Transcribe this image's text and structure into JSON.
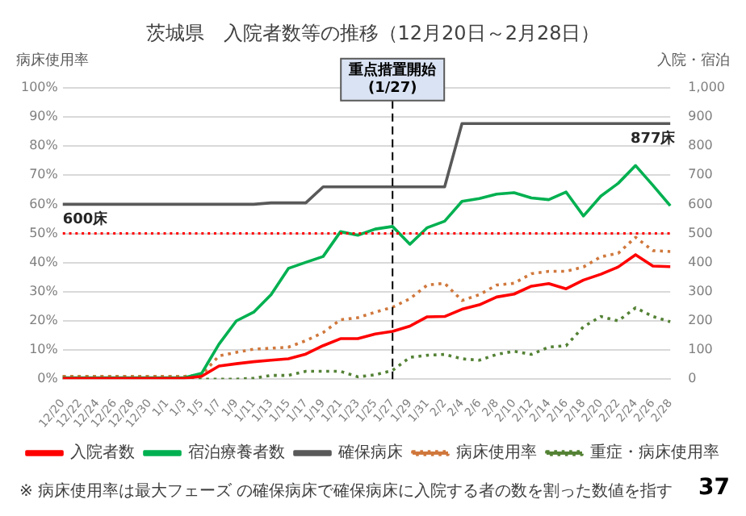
{
  "chart_data": {
    "type": "line",
    "title": "茨城県　入院者数等の推移（12月20日～2月28日）",
    "ylabel": "病床使用率",
    "y2label": "入院・宿泊",
    "categories": [
      "12/20",
      "12/22",
      "12/24",
      "12/26",
      "12/28",
      "12/30",
      "1/1",
      "1/3",
      "1/5",
      "1/7",
      "1/9",
      "1/11",
      "1/13",
      "1/15",
      "1/17",
      "1/19",
      "1/21",
      "1/23",
      "1/25",
      "1/27",
      "1/29",
      "1/31",
      "2/2",
      "2/4",
      "2/6",
      "2/8",
      "2/10",
      "2/12",
      "2/14",
      "2/16",
      "2/18",
      "2/20",
      "2/22",
      "2/24",
      "2/26",
      "2/28"
    ],
    "series": [
      {
        "name": "入院者数",
        "color": "#ff0000",
        "axis": "y2",
        "line_style": "solid",
        "values": [
          3,
          3,
          3,
          3,
          3,
          3,
          3,
          3,
          10,
          45,
          53,
          60,
          65,
          70,
          86,
          115,
          139,
          139,
          155,
          164,
          182,
          214,
          215,
          240,
          255,
          282,
          292,
          319,
          328,
          310,
          340,
          360,
          385,
          427,
          388,
          386
        ]
      },
      {
        "name": "宿泊療養者数",
        "color": "#00b050",
        "axis": "y2",
        "line_style": "solid",
        "values": [
          5,
          5,
          5,
          5,
          5,
          5,
          5,
          5,
          20,
          120,
          200,
          230,
          290,
          380,
          401,
          421,
          506,
          494,
          515,
          524,
          463,
          520,
          542,
          610,
          620,
          635,
          640,
          622,
          616,
          642,
          560,
          628,
          672,
          733,
          665,
          595
        ]
      },
      {
        "name": "確保病床",
        "color": "#595959",
        "axis": "y2",
        "line_style": "solid",
        "values": [
          600,
          600,
          600,
          600,
          600,
          600,
          600,
          600,
          600,
          600,
          600,
          600,
          605,
          605,
          605,
          660,
          660,
          660,
          660,
          660,
          660,
          660,
          660,
          877,
          877,
          877,
          877,
          877,
          877,
          877,
          877,
          877,
          877,
          877,
          877,
          877
        ]
      },
      {
        "name": "病床使用率",
        "color": "#d0783c",
        "axis": "y",
        "line_style": "dotted",
        "values": [
          1,
          1,
          1,
          1,
          1,
          1,
          1,
          1,
          1.5,
          8,
          9.2,
          10.3,
          10.6,
          11,
          13.2,
          16,
          20.4,
          21.1,
          23,
          24.7,
          27.6,
          32.3,
          32.9,
          27,
          29,
          32.3,
          32.9,
          36.2,
          37,
          37,
          38.5,
          42,
          43.2,
          48.7,
          44.1,
          43.8
        ]
      },
      {
        "name": "重症・病床使用率",
        "color": "#548235",
        "axis": "y",
        "line_style": "dotted",
        "values": [
          1,
          1,
          1,
          1,
          1,
          1,
          1,
          1,
          0,
          0,
          0,
          0.3,
          1.3,
          1.3,
          2.7,
          2.7,
          2.7,
          0.8,
          1.5,
          3,
          7.5,
          8.2,
          8.5,
          7,
          6.5,
          8.5,
          9.6,
          8.5,
          11,
          11.5,
          18,
          21.5,
          20,
          24.5,
          21.5,
          19.7
        ]
      }
    ],
    "ylim": [
      0,
      100
    ],
    "yticks": [
      {
        "value": 0,
        "label": "0%"
      },
      {
        "value": 10,
        "label": "10%"
      },
      {
        "value": 20,
        "label": "20%"
      },
      {
        "value": 30,
        "label": "30%"
      },
      {
        "value": 40,
        "label": "40%"
      },
      {
        "value": 50,
        "label": "50%"
      },
      {
        "value": 60,
        "label": "60%"
      },
      {
        "value": 70,
        "label": "70%"
      },
      {
        "value": 80,
        "label": "80%"
      },
      {
        "value": 90,
        "label": "90%"
      },
      {
        "value": 100,
        "label": "100%"
      }
    ],
    "y2lim": [
      0,
      1000
    ],
    "y2ticks": [
      0,
      100,
      200,
      300,
      400,
      500,
      600,
      700,
      800,
      900,
      {
        "value": 1000,
        "label": "1,000"
      }
    ],
    "grid": "y",
    "legend": "bottom",
    "marker": "none",
    "ref_lines": [
      {
        "axis": "x",
        "value": "1/27",
        "label": "重点措置開始 (1/27)",
        "color": "#000000",
        "line_style": "dashed"
      },
      {
        "axis": "y",
        "value": 50,
        "color": "#ff0000",
        "line_style": "dotted"
      }
    ],
    "annotations": [
      {
        "text": "600床",
        "x": "12/20",
        "y": 60
      },
      {
        "text": "877床",
        "x": "2/26",
        "y": 87.7
      },
      "※ 病床使用率は最大フェーズ の確保病床で確保病床に入院する者の数を割った数値を指す",
      "37"
    ]
  }
}
